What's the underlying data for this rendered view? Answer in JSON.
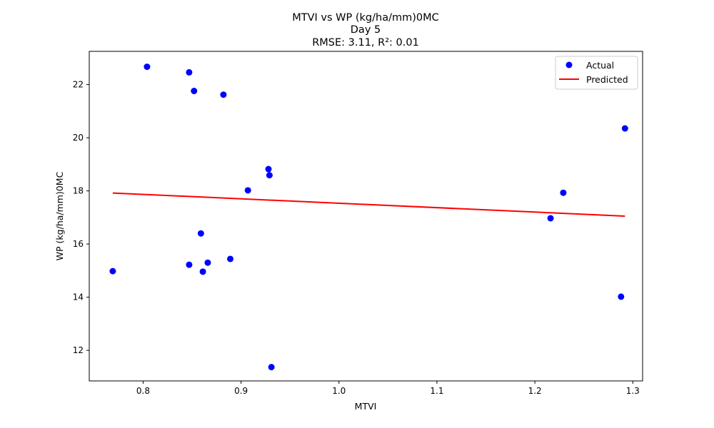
{
  "chart_data": {
    "type": "scatter",
    "title": [
      "MTVI vs WP (kg/ha/mm)0MC",
      "Day 5",
      "RMSE: 3.11, R²: 0.01"
    ],
    "xlabel": "MTVI",
    "ylabel": "WP (kg/ha/mm)0MC",
    "xlim": [
      0.745,
      1.31
    ],
    "ylim": [
      10.85,
      23.25
    ],
    "xticks": [
      0.8,
      0.9,
      1.0,
      1.1,
      1.2,
      1.3
    ],
    "xtick_labels": [
      "0.8",
      "0.9",
      "1.0",
      "1.1",
      "1.2",
      "1.3"
    ],
    "yticks": [
      12,
      14,
      16,
      18,
      20,
      22
    ],
    "ytick_labels": [
      "12",
      "14",
      "16",
      "18",
      "20",
      "22"
    ],
    "grid": false,
    "legend_position": "top-right",
    "series": [
      {
        "name": "Actual",
        "kind": "scatter",
        "color": "#0000ff",
        "points": [
          [
            0.769,
            14.98
          ],
          [
            0.804,
            22.67
          ],
          [
            0.847,
            22.46
          ],
          [
            0.852,
            21.76
          ],
          [
            0.882,
            21.62
          ],
          [
            0.847,
            15.22
          ],
          [
            0.859,
            16.4
          ],
          [
            0.861,
            14.96
          ],
          [
            0.866,
            15.3
          ],
          [
            0.889,
            15.44
          ],
          [
            0.907,
            18.02
          ],
          [
            0.928,
            18.82
          ],
          [
            0.929,
            18.59
          ],
          [
            0.931,
            11.37
          ],
          [
            1.216,
            16.97
          ],
          [
            1.229,
            17.93
          ],
          [
            1.288,
            14.02
          ],
          [
            1.292,
            20.35
          ]
        ]
      },
      {
        "name": "Predicted",
        "kind": "line",
        "color": "#ff0000",
        "points": [
          [
            0.769,
            17.92
          ],
          [
            1.292,
            17.05
          ]
        ]
      }
    ]
  }
}
